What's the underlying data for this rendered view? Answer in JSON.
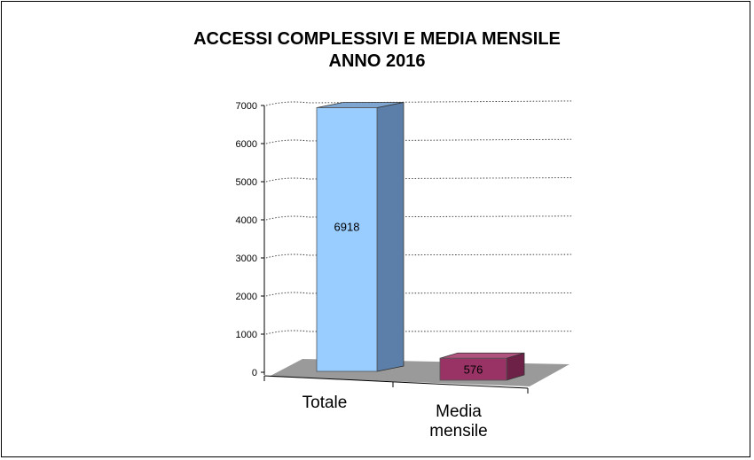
{
  "chart_data": {
    "type": "bar",
    "title": "ACCESSI  COMPLESSIVI  E MEDIA  MENSILE",
    "subtitle": "ANNO  2016",
    "categories": [
      "Totale",
      "Media mensile"
    ],
    "category_lines": [
      [
        "Totale"
      ],
      [
        "Media",
        "mensile"
      ]
    ],
    "values": [
      6918,
      576
    ],
    "data_labels": [
      "6918",
      "576"
    ],
    "ylim": [
      0,
      7000
    ],
    "yticks": [
      0,
      1000,
      2000,
      3000,
      4000,
      5000,
      6000,
      7000
    ],
    "ytick_labels": [
      "0",
      "1000",
      "2000",
      "3000",
      "4000",
      "5000",
      "6000",
      "7000"
    ],
    "grid": true,
    "style": "3d",
    "colors": {
      "bar1_front": "#99ccff",
      "bar1_side": "#5b7fa8",
      "bar1_top": "#7fa6d0",
      "bar2_front": "#993366",
      "bar2_side": "#6e2147",
      "bar2_top": "#b0527e",
      "floor": "#9a9a9a"
    }
  }
}
